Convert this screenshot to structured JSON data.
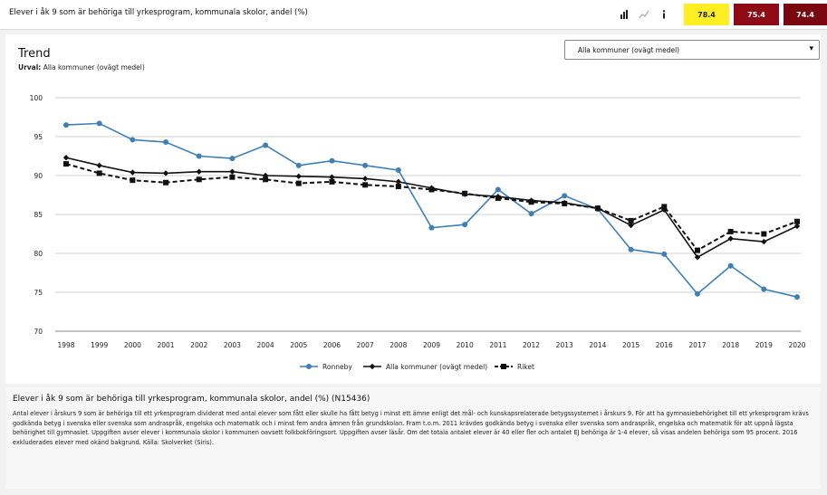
{
  "header": {
    "title": "Elever i åk 9 som är behöriga till yrkesprogram, kommunala skolor, andel (%)",
    "icons": [
      "bar-chart-icon",
      "line-chart-icon",
      "info-icon"
    ],
    "badges": [
      {
        "value": "78.4",
        "color": "#ffee22"
      },
      {
        "value": "75.4",
        "color": "#8e0a14"
      },
      {
        "value": "74.4",
        "color": "#7a0710"
      }
    ]
  },
  "trend": {
    "title": "Trend",
    "urval_label": "Urval:",
    "urval_value": "Alla kommuner (ovägt medel)",
    "select_value": "Alla kommuner (ovägt medel)"
  },
  "chart_data": {
    "type": "line",
    "x": [
      "1998",
      "1999",
      "2000",
      "2001",
      "2002",
      "2003",
      "2004",
      "2005",
      "2006",
      "2007",
      "2008",
      "2009",
      "2010",
      "2011",
      "2012",
      "2013",
      "2014",
      "2015",
      "2016",
      "2017",
      "2018",
      "2019",
      "2020"
    ],
    "ylim": [
      70,
      100
    ],
    "yticks": [
      70,
      75,
      80,
      85,
      90,
      95,
      100
    ],
    "grid": true,
    "legend": "bottom",
    "series": [
      {
        "name": "Ronneby",
        "color": "#3f7fb4",
        "style": "solid",
        "marker": "circle",
        "values": [
          96.5,
          96.7,
          94.6,
          94.3,
          92.5,
          92.2,
          93.9,
          91.3,
          91.9,
          91.3,
          90.7,
          83.3,
          83.7,
          88.2,
          85.1,
          87.4,
          85.7,
          80.5,
          79.9,
          74.8,
          78.4,
          75.4,
          74.4
        ]
      },
      {
        "name": "Alla kommuner (ovägt medel)",
        "color": "#111111",
        "style": "solid",
        "marker": "diamond",
        "values": [
          92.3,
          91.3,
          90.4,
          90.3,
          90.5,
          90.5,
          90.0,
          89.9,
          89.8,
          89.6,
          89.2,
          88.4,
          87.6,
          87.3,
          86.8,
          86.5,
          85.8,
          83.6,
          85.6,
          79.5,
          81.9,
          81.5,
          83.5
        ]
      },
      {
        "name": "Riket",
        "color": "#111111",
        "style": "dashed",
        "marker": "square",
        "values": [
          91.5,
          90.3,
          89.4,
          89.1,
          89.5,
          89.8,
          89.5,
          89.0,
          89.2,
          88.8,
          88.6,
          88.2,
          87.7,
          87.1,
          86.6,
          86.4,
          85.8,
          84.2,
          86.0,
          80.4,
          82.8,
          82.5,
          84.1
        ]
      }
    ]
  },
  "description": {
    "title": "Elever i åk 9 som är behöriga till yrkesprogram, kommunala skolor, andel (%) (N15436)",
    "body": "Antal elever i årskurs 9 som är behöriga till ett yrkesprogram dividerat med antal elever som fått eller skulle ha fått betyg i minst ett ämne enligt det mål- och kunskapsrelaterade betygssystemet i årskurs 9. För att ha gymnasiebehörighet till ett yrkesprogram krävs godkända betyg i svenska eller svenska som andraspråk, engelska och matematik och i minst fem andra ämnen från grundskolan. Fram t.o.m. 2011 krävdes godkända betyg i svenska eller svenska som andraspråk, engelska och matematik för att uppnå lägsta behörighet till gymnasiet. Uppgiften avser elever i kommunala skolor i kommunen oavsett folkbokföringsort. Uppgiften avser läsår. Om det totala antalet elever är 40 eller fler och antalet EJ behöriga är 1-4 elever, så visas andelen behöriga som 95 procent. 2016 exkluderades elever med okänd bakgrund. Källa: Skolverket (Siris)."
  }
}
